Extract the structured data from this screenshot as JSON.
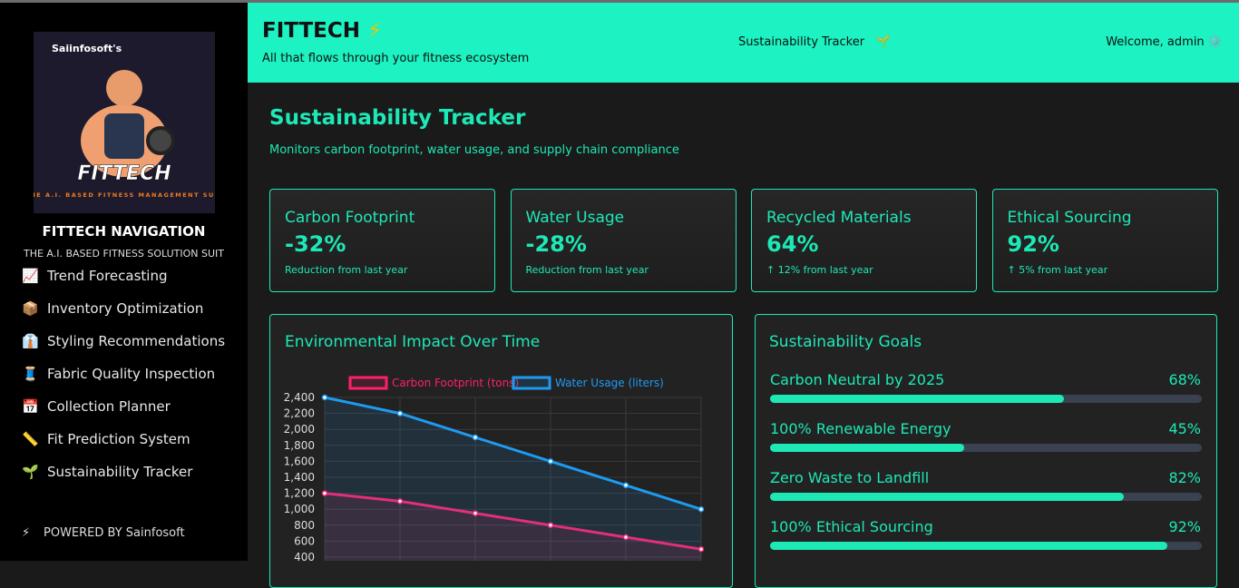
{
  "sidebar": {
    "logo": {
      "brand": "Saiinfosoft's",
      "name": "FITTECH",
      "tagline": "THE A.I. BASED FITNESS MANAGEMENT SUIT"
    },
    "title": "FITTECH NAVIGATION",
    "subtitle": "THE A.I. BASED FITNESS SOLUTION SUIT",
    "nav": [
      {
        "icon": "📈",
        "label": "Trend Forecasting"
      },
      {
        "icon": "📦",
        "label": "Inventory Optimization"
      },
      {
        "icon": "👔",
        "label": "Styling Recommendations"
      },
      {
        "icon": "🧵",
        "label": "Fabric Quality Inspection"
      },
      {
        "icon": "📅",
        "label": "Collection Planner"
      },
      {
        "icon": "📏",
        "label": "Fit Prediction System"
      },
      {
        "icon": "🌱",
        "label": "Sustainability Tracker"
      }
    ],
    "footer": {
      "icon": "⚡",
      "label": "POWERED BY Sainfosoft"
    }
  },
  "header": {
    "title": "FITTECH",
    "title_icon": "⚡",
    "tagline": "All that flows through your fitness ecosystem",
    "section": "Sustainability Tracker",
    "section_icon": "🌱",
    "welcome": "Welcome, admin",
    "welcome_icon": "⚙️"
  },
  "page": {
    "title": "Sustainability Tracker",
    "description": "Monitors carbon footprint, water usage, and supply chain compliance"
  },
  "cards": [
    {
      "label": "Carbon Footprint",
      "value": "-32%",
      "note": "Reduction from last year"
    },
    {
      "label": "Water Usage",
      "value": "-28%",
      "note": "Reduction from last year"
    },
    {
      "label": "Recycled Materials",
      "value": "64%",
      "note": "↑ 12% from last year"
    },
    {
      "label": "Ethical Sourcing",
      "value": "92%",
      "note": "↑ 5% from last year"
    }
  ],
  "chart_data": {
    "type": "line",
    "title": "Environmental Impact Over Time",
    "categories": [
      null,
      null,
      null,
      null,
      null,
      null
    ],
    "series": [
      {
        "name": "Carbon Footprint (tons)",
        "color": "#ff1f6b",
        "values": [
          1200,
          1100,
          950,
          800,
          650,
          500
        ]
      },
      {
        "name": "Water Usage (liters)",
        "color": "#1e9bf0",
        "values": [
          2400,
          2200,
          1900,
          1600,
          1300,
          1000
        ]
      }
    ],
    "ylim": [
      400,
      2400
    ],
    "yticks": [
      400,
      600,
      800,
      {
        "value": 1000,
        "label": "1,000"
      },
      {
        "value": 1200,
        "label": "1,200"
      },
      {
        "value": 1400,
        "label": "1,400"
      },
      {
        "value": 1600,
        "label": "1,600"
      },
      {
        "value": 1800,
        "label": "1,800"
      },
      {
        "value": 2000,
        "label": "2,000"
      },
      {
        "value": 2200,
        "label": "2,200"
      },
      {
        "value": 2400,
        "label": "2,400"
      }
    ],
    "grid": true,
    "fill": true,
    "legend": "top"
  },
  "goals": {
    "title": "Sustainability Goals",
    "items": [
      {
        "name": "Carbon Neutral by 2025",
        "percent": 68,
        "label": "68%"
      },
      {
        "name": "100% Renewable Energy",
        "percent": 45,
        "label": "45%"
      },
      {
        "name": "Zero Waste to Landfill",
        "percent": 82,
        "label": "82%"
      },
      {
        "name": "100% Ethical Sourcing",
        "percent": 92,
        "label": "92%"
      }
    ]
  }
}
